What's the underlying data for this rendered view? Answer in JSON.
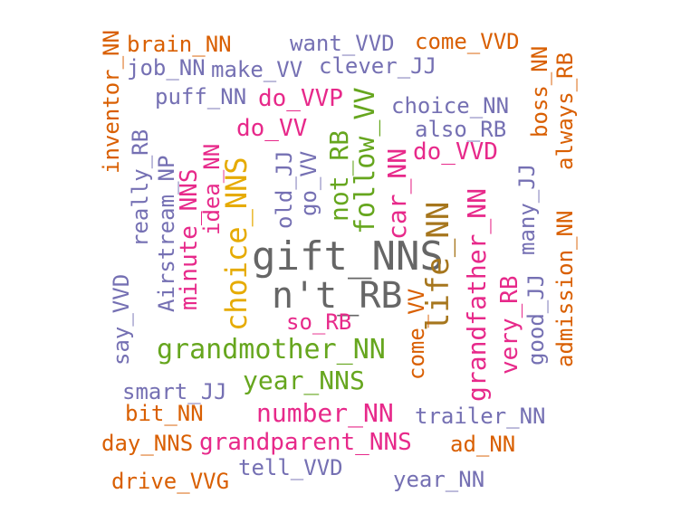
{
  "words": {
    "gift_nns": "gift_NNS",
    "nt_rb": "n't_RB",
    "grandmother_nn": "grandmother_NN",
    "year_nns": "year_NNS",
    "number_nn": "number_NN",
    "grandparent_nns": "grandparent_NNS",
    "choice_nns": "choice_NNS",
    "life_nn": "life_NN",
    "grandfather_nn": "grandfather_NN",
    "follow_vv": "follow_VV",
    "not_rb": "not_RB",
    "car_nn": "car_NN",
    "do_vvp": "do_VVP",
    "do_vv": "do_VV",
    "do_vvd": "do_VVD",
    "choice_nn": "choice_NN",
    "also_rb": "also_RB",
    "very_rb": "very_RB",
    "good_jj": "good_JJ",
    "many_jj": "many_JJ",
    "admission_nn": "admission_NN",
    "always_rb": "always_RB",
    "boss_nn": "boss_NN",
    "want_vvd": "want_VVD",
    "come_vvd": "come_VVD",
    "clever_jj": "clever_JJ",
    "make_vv": "make_VV",
    "brain_nn": "brain_NN",
    "job_nn": "job_NN",
    "puff_nn": "puff_NN",
    "inventor_nn": "inventor_NN",
    "really_rb": "really_RB",
    "airstream_np": "Airstream_NP",
    "minute_nns": "minute_NNS",
    "idea_nn": "idea_NN",
    "old_jj": "old_JJ",
    "go_vv": "go_VV",
    "say_vvd": "say_VVD",
    "so_rb": "so_RB",
    "come_vv": "come_VV",
    "smart_jj": "smart_JJ",
    "bit_nn": "bit_NN",
    "day_nns": "day_NNS",
    "trailer_nn": "trailer_NN",
    "ad_nn": "ad_NN",
    "tell_vvd": "tell_VVD",
    "drive_vvg": "drive_VVG",
    "year_nn": "year_NN"
  },
  "palette": {
    "purple": "#7570b3",
    "orange": "#d95f02",
    "pink": "#e7298a",
    "green": "#66a61e",
    "gold": "#e6ab02",
    "brown": "#a6761d",
    "gray": "#666666"
  }
}
